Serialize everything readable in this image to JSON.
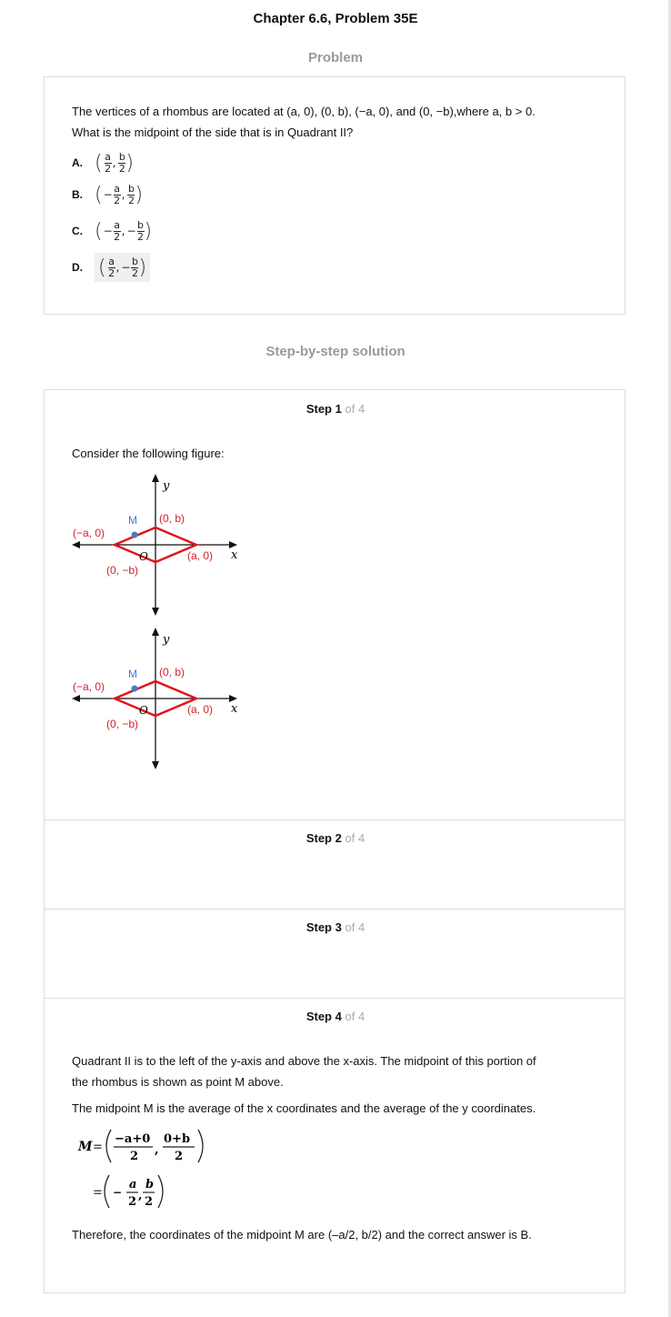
{
  "title": "Chapter 6.6, Problem 35E",
  "problem_heading": "Problem",
  "problem": {
    "text_line1": "The vertices of a rhombus are located at (a, 0), (0, b), (−a, 0), and (0, −b),where a, b > 0.",
    "text_line2": "What is the midpoint of the side that is in Quadrant II?",
    "options": [
      {
        "letter": "A.",
        "x_sign": "",
        "x_num": "a",
        "y_sign": "",
        "y_num": "b",
        "den": "2"
      },
      {
        "letter": "B.",
        "x_sign": "−",
        "x_num": "a",
        "y_sign": "",
        "y_num": "b",
        "den": "2"
      },
      {
        "letter": "C.",
        "x_sign": "−",
        "x_num": "a",
        "y_sign": "−",
        "y_num": "b",
        "den": "2"
      },
      {
        "letter": "D.",
        "x_sign": "",
        "x_num": "a",
        "y_sign": "−",
        "y_num": "b",
        "den": "2"
      }
    ]
  },
  "solution_heading": "Step-by-step solution",
  "steps": [
    {
      "num": "1",
      "of": "of 4"
    },
    {
      "num": "2",
      "of": "of 4"
    },
    {
      "num": "3",
      "of": "of 4"
    },
    {
      "num": "4",
      "of": "of 4"
    }
  ],
  "step_word": "Step",
  "step1": {
    "intro": "Consider the following figure:",
    "figure": {
      "label_y": "y",
      "label_x": "x",
      "label_M": "M",
      "label_O": "O",
      "label_0b": "(0, b)",
      "label_neg_a0": "(−a, 0)",
      "label_a0": "(a, 0)",
      "label_0negb": "(0, −b)"
    }
  },
  "step4": {
    "para1_line1": "Quadrant II is to the left of the y-axis and above the x-axis. The midpoint of this portion of",
    "para1_line2": "the rhombus is shown as point M above.",
    "para2": "The midpoint M is the average of the x coordinates and the average of the y coordinates.",
    "eq1_lhs": "M",
    "eq1_eq": "=",
    "eq1_num1": "−a+0",
    "eq1_num2": "0+b",
    "eq1_den": "2",
    "eq2_eq": "=",
    "eq2_sign": "−",
    "eq2_num1": "a",
    "eq2_num2": "b",
    "eq2_den": "2",
    "conclusion": "Therefore, the coordinates of the midpoint M are (–a/2, b/2) and the correct answer is B."
  },
  "colors": {
    "rhombus": "#e0161b",
    "label": "#d0202a",
    "point": "#4a7bc0",
    "muted": "#9a9a9a"
  }
}
